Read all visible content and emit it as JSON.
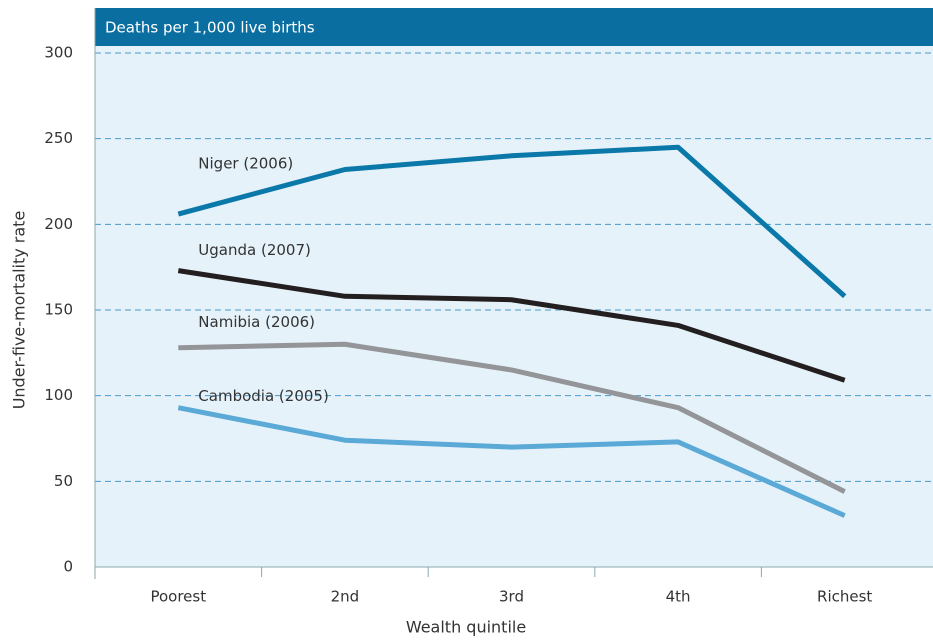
{
  "chart_data": {
    "type": "line",
    "title": "Deaths per 1,000 live births",
    "x_label": "Wealth quintile",
    "y_label": "Under-five-mortality rate",
    "categories": [
      "Poorest",
      "2nd",
      "3rd",
      "4th",
      "Richest"
    ],
    "series": [
      {
        "name": "Niger (2006)",
        "color": "#0a78a8",
        "values": [
          206,
          232,
          240,
          245,
          158
        ]
      },
      {
        "name": "Uganda (2007)",
        "color": "#231f20",
        "values": [
          173,
          158,
          156,
          141,
          109
        ]
      },
      {
        "name": "Namibia (2006)",
        "color": "#939598",
        "values": [
          128,
          130,
          115,
          93,
          44
        ]
      },
      {
        "name": "Cambodia (2005)",
        "color": "#5aa9d6",
        "values": [
          93,
          74,
          70,
          73,
          30
        ]
      }
    ],
    "ylim": [
      0,
      300
    ],
    "yticks": [
      0,
      50,
      100,
      150,
      200,
      250,
      300
    ],
    "grid": true
  }
}
